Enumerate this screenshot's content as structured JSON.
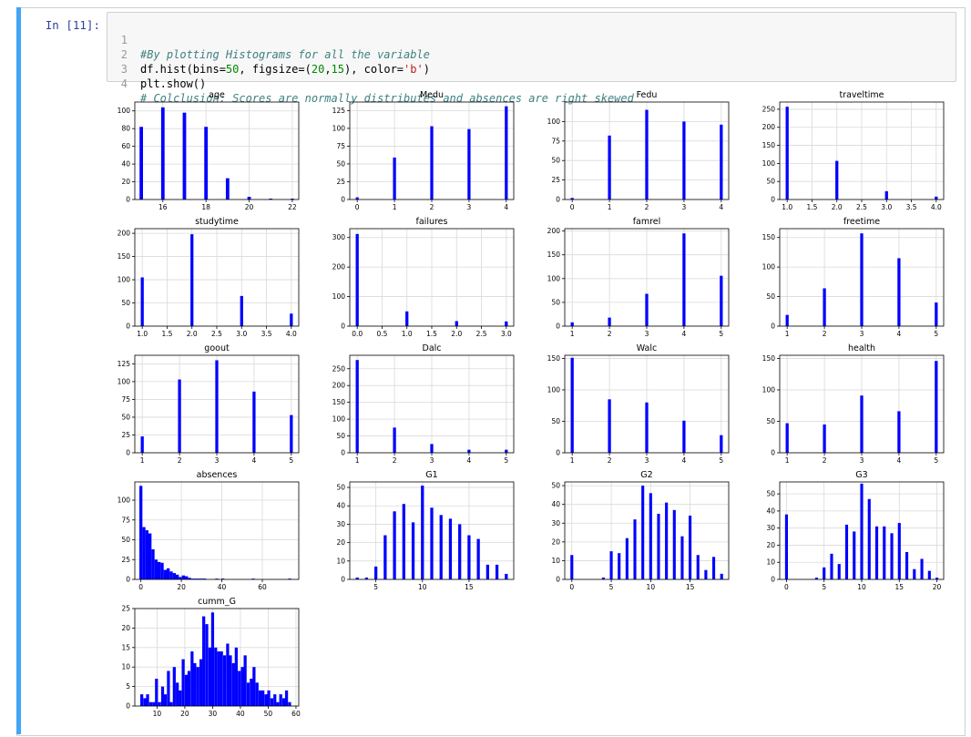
{
  "cell": {
    "prompt": "In [11]:",
    "lines": [
      {
        "no": "1",
        "tokens": [
          {
            "t": "#By plotting Histograms for all the variable",
            "c": "cm-comment"
          }
        ]
      },
      {
        "no": "2",
        "tokens": [
          {
            "t": "df.hist(bins=",
            "c": ""
          },
          {
            "t": "50",
            "c": "cm-number"
          },
          {
            "t": ", figsize=(",
            "c": ""
          },
          {
            "t": "20",
            "c": "cm-number"
          },
          {
            "t": ",",
            "c": ""
          },
          {
            "t": "15",
            "c": "cm-number"
          },
          {
            "t": "), color=",
            "c": ""
          },
          {
            "t": "'b'",
            "c": "cm-string"
          },
          {
            "t": ")",
            "c": ""
          }
        ]
      },
      {
        "no": "3",
        "tokens": [
          {
            "t": "plt.show()",
            "c": ""
          }
        ]
      },
      {
        "no": "4",
        "tokens": [
          {
            "t": "# Colclusion: Scores are normally distributes and absences are right skewed",
            "c": "cm-comment"
          }
        ]
      }
    ]
  },
  "colors": {
    "bar": "#0000ff",
    "grid": "#d9d9d9",
    "axis": "#000000",
    "prompt": "#303f9f",
    "cell_bar": "#42a5f5"
  },
  "chart_data": [
    {
      "type": "bar",
      "title": "age",
      "xlim": [
        14.7,
        22.3
      ],
      "ylim": [
        0,
        110
      ],
      "xticks": [
        16,
        18,
        20,
        22
      ],
      "xtick_labels": [
        "16",
        "18",
        "20",
        "22"
      ],
      "yticks": [
        0,
        20,
        40,
        60,
        80,
        100
      ],
      "bar_width": 0.16,
      "x": [
        15,
        16,
        17,
        18,
        19,
        20,
        21,
        22
      ],
      "values": [
        82,
        104,
        98,
        82,
        24,
        3,
        1,
        1
      ]
    },
    {
      "type": "bar",
      "title": "Medu",
      "xlim": [
        -0.2,
        4.2
      ],
      "ylim": [
        0,
        137
      ],
      "xticks": [
        0,
        1,
        2,
        3,
        4
      ],
      "xtick_labels": [
        "0",
        "1",
        "2",
        "3",
        "4"
      ],
      "yticks": [
        0,
        25,
        50,
        75,
        100,
        125
      ],
      "bar_width": 0.08,
      "x": [
        0,
        1,
        2,
        3,
        4
      ],
      "values": [
        3,
        59,
        103,
        99,
        131
      ]
    },
    {
      "type": "bar",
      "title": "Fedu",
      "xlim": [
        -0.2,
        4.2
      ],
      "ylim": [
        0,
        125
      ],
      "xticks": [
        0,
        1,
        2,
        3,
        4
      ],
      "xtick_labels": [
        "0",
        "1",
        "2",
        "3",
        "4"
      ],
      "yticks": [
        0,
        25,
        50,
        75,
        100
      ],
      "bar_width": 0.08,
      "x": [
        0,
        1,
        2,
        3,
        4
      ],
      "values": [
        2,
        82,
        115,
        100,
        96
      ]
    },
    {
      "type": "bar",
      "title": "traveltime",
      "xlim": [
        0.85,
        4.15
      ],
      "ylim": [
        0,
        270
      ],
      "xticks": [
        1,
        1.5,
        2,
        2.5,
        3,
        3.5,
        4
      ],
      "xtick_labels": [
        "1.0",
        "1.5",
        "2.0",
        "2.5",
        "3.0",
        "3.5",
        "4.0"
      ],
      "yticks": [
        0,
        50,
        100,
        150,
        200,
        250
      ],
      "bar_width": 0.06,
      "x": [
        1,
        2,
        3,
        4
      ],
      "values": [
        257,
        107,
        23,
        8
      ]
    },
    {
      "type": "bar",
      "title": "studytime",
      "xlim": [
        0.85,
        4.15
      ],
      "ylim": [
        0,
        210
      ],
      "xticks": [
        1,
        1.5,
        2,
        2.5,
        3,
        3.5,
        4
      ],
      "xtick_labels": [
        "1.0",
        "1.5",
        "2.0",
        "2.5",
        "3.0",
        "3.5",
        "4.0"
      ],
      "yticks": [
        0,
        50,
        100,
        150,
        200
      ],
      "bar_width": 0.06,
      "x": [
        1,
        2,
        3,
        4
      ],
      "values": [
        105,
        198,
        65,
        27
      ]
    },
    {
      "type": "bar",
      "title": "failures",
      "xlim": [
        -0.15,
        3.15
      ],
      "ylim": [
        0,
        330
      ],
      "xticks": [
        0,
        0.5,
        1,
        1.5,
        2,
        2.5,
        3
      ],
      "xtick_labels": [
        "0.0",
        "0.5",
        "1.0",
        "1.5",
        "2.0",
        "2.5",
        "3.0"
      ],
      "yticks": [
        0,
        100,
        200,
        300
      ],
      "bar_width": 0.06,
      "x": [
        0,
        1,
        2,
        3
      ],
      "values": [
        312,
        50,
        17,
        16
      ]
    },
    {
      "type": "bar",
      "title": "famrel",
      "xlim": [
        0.8,
        5.2
      ],
      "ylim": [
        0,
        205
      ],
      "xticks": [
        1,
        2,
        3,
        4,
        5
      ],
      "xtick_labels": [
        "1",
        "2",
        "3",
        "4",
        "5"
      ],
      "yticks": [
        0,
        50,
        100,
        150,
        200
      ],
      "bar_width": 0.08,
      "x": [
        1,
        2,
        3,
        4,
        5
      ],
      "values": [
        8,
        18,
        68,
        195,
        106
      ]
    },
    {
      "type": "bar",
      "title": "freetime",
      "xlim": [
        0.8,
        5.2
      ],
      "ylim": [
        0,
        165
      ],
      "xticks": [
        1,
        2,
        3,
        4,
        5
      ],
      "xtick_labels": [
        "1",
        "2",
        "3",
        "4",
        "5"
      ],
      "yticks": [
        0,
        50,
        100,
        150
      ],
      "bar_width": 0.08,
      "x": [
        1,
        2,
        3,
        4,
        5
      ],
      "values": [
        19,
        64,
        157,
        115,
        40
      ]
    },
    {
      "type": "bar",
      "title": "goout",
      "xlim": [
        0.8,
        5.2
      ],
      "ylim": [
        0,
        137
      ],
      "xticks": [
        1,
        2,
        3,
        4,
        5
      ],
      "xtick_labels": [
        "1",
        "2",
        "3",
        "4",
        "5"
      ],
      "yticks": [
        0,
        25,
        50,
        75,
        100,
        125
      ],
      "bar_width": 0.08,
      "x": [
        1,
        2,
        3,
        4,
        5
      ],
      "values": [
        23,
        103,
        130,
        86,
        53
      ]
    },
    {
      "type": "bar",
      "title": "Dalc",
      "xlim": [
        0.8,
        5.2
      ],
      "ylim": [
        0,
        290
      ],
      "xticks": [
        1,
        2,
        3,
        4,
        5
      ],
      "xtick_labels": [
        "1",
        "2",
        "3",
        "4",
        "5"
      ],
      "yticks": [
        0,
        50,
        100,
        150,
        200,
        250
      ],
      "bar_width": 0.08,
      "x": [
        1,
        2,
        3,
        4,
        5
      ],
      "values": [
        276,
        75,
        26,
        9,
        9
      ]
    },
    {
      "type": "bar",
      "title": "Walc",
      "xlim": [
        0.8,
        5.2
      ],
      "ylim": [
        0,
        155
      ],
      "xticks": [
        1,
        2,
        3,
        4,
        5
      ],
      "xtick_labels": [
        "1",
        "2",
        "3",
        "4",
        "5"
      ],
      "yticks": [
        0,
        50,
        100,
        150
      ],
      "bar_width": 0.08,
      "x": [
        1,
        2,
        3,
        4,
        5
      ],
      "values": [
        151,
        85,
        80,
        51,
        28
      ]
    },
    {
      "type": "bar",
      "title": "health",
      "xlim": [
        0.8,
        5.2
      ],
      "ylim": [
        0,
        155
      ],
      "xticks": [
        1,
        2,
        3,
        4,
        5
      ],
      "xtick_labels": [
        "1",
        "2",
        "3",
        "4",
        "5"
      ],
      "yticks": [
        0,
        50,
        100,
        150
      ],
      "bar_width": 0.08,
      "x": [
        1,
        2,
        3,
        4,
        5
      ],
      "values": [
        47,
        45,
        91,
        66,
        146
      ]
    },
    {
      "type": "bar",
      "title": "absences",
      "xlim": [
        -3,
        78
      ],
      "ylim": [
        0,
        123
      ],
      "xticks": [
        0,
        20,
        40,
        60
      ],
      "xtick_labels": [
        "0",
        "20",
        "40",
        "60"
      ],
      "yticks": [
        0,
        25,
        50,
        75,
        100
      ],
      "bar_width": 1.5,
      "x": [
        0,
        1.5,
        3,
        4.5,
        6,
        7.5,
        9,
        10.5,
        12,
        13.5,
        15,
        16.5,
        18,
        19.5,
        21,
        22.5,
        24,
        25.5,
        27,
        28.5,
        30,
        31.5,
        37.5,
        40.5,
        55.5,
        73.5
      ],
      "values": [
        118,
        66,
        62,
        58,
        38,
        25,
        22,
        21,
        12,
        14,
        10,
        8,
        6,
        3,
        5,
        4,
        2,
        1,
        1,
        1,
        1,
        1,
        1,
        1,
        1,
        1
      ]
    },
    {
      "type": "bar",
      "title": "G1",
      "xlim": [
        2.2,
        19.8
      ],
      "ylim": [
        0,
        53
      ],
      "xticks": [
        5,
        10,
        15
      ],
      "xtick_labels": [
        "5",
        "10",
        "15"
      ],
      "yticks": [
        0,
        10,
        20,
        30,
        40,
        50
      ],
      "bar_width": 0.32,
      "x": [
        3,
        4,
        5,
        6,
        7,
        8,
        9,
        10,
        11,
        12,
        13,
        14,
        15,
        16,
        17,
        18,
        19
      ],
      "values": [
        1,
        1,
        7,
        24,
        37,
        41,
        31,
        51,
        39,
        35,
        33,
        30,
        24,
        22,
        8,
        8,
        3
      ]
    },
    {
      "type": "bar",
      "title": "G2",
      "xlim": [
        -0.9,
        19.9
      ],
      "ylim": [
        0,
        52
      ],
      "xticks": [
        0,
        5,
        10,
        15
      ],
      "xtick_labels": [
        "0",
        "5",
        "10",
        "15"
      ],
      "yticks": [
        0,
        10,
        20,
        30,
        40,
        50
      ],
      "bar_width": 0.36,
      "x": [
        0,
        4,
        5,
        6,
        7,
        8,
        9,
        10,
        11,
        12,
        13,
        14,
        15,
        16,
        17,
        18,
        19
      ],
      "values": [
        13,
        1,
        15,
        14,
        22,
        32,
        50,
        46,
        35,
        41,
        37,
        23,
        34,
        13,
        5,
        12,
        3
      ]
    },
    {
      "type": "bar",
      "title": "G3",
      "xlim": [
        -0.9,
        20.9
      ],
      "ylim": [
        0,
        57
      ],
      "xticks": [
        0,
        5,
        10,
        15,
        20
      ],
      "xtick_labels": [
        "0",
        "5",
        "10",
        "15",
        "20"
      ],
      "yticks": [
        0,
        10,
        20,
        30,
        40,
        50
      ],
      "bar_width": 0.38,
      "x": [
        0,
        4,
        5,
        6,
        7,
        8,
        9,
        10,
        11,
        12,
        13,
        14,
        15,
        16,
        17,
        18,
        19,
        20
      ],
      "values": [
        38,
        1,
        7,
        15,
        9,
        32,
        28,
        56,
        47,
        31,
        31,
        27,
        33,
        16,
        6,
        12,
        5,
        1
      ]
    },
    {
      "type": "bar",
      "title": "cumm_G",
      "xlim": [
        2,
        61
      ],
      "ylim": [
        0,
        25
      ],
      "xticks": [
        10,
        20,
        30,
        40,
        50,
        60
      ],
      "xtick_labels": [
        "10",
        "20",
        "30",
        "40",
        "50",
        "60"
      ],
      "yticks": [
        0,
        5,
        10,
        15,
        20,
        25
      ],
      "bar_width": 1.06,
      "x": [
        4.5,
        5.6,
        6.6,
        7.7,
        8.8,
        9.8,
        10.9,
        12,
        13,
        14.1,
        15.1,
        16.2,
        17.3,
        18.3,
        19.4,
        20.5,
        21.5,
        22.6,
        23.6,
        24.7,
        25.8,
        26.8,
        27.9,
        29,
        30,
        31.1,
        32.2,
        33.2,
        34.3,
        35.4,
        36.4,
        37.5,
        38.5,
        39.6,
        40.7,
        41.7,
        42.8,
        43.9,
        44.9,
        46,
        47.1,
        48.1,
        49.2,
        50.2,
        51.3,
        52.4,
        53.4,
        54.5,
        55.6,
        56.6,
        57.7
      ],
      "values": [
        3,
        2,
        3,
        1,
        1,
        7,
        1,
        5,
        3,
        9,
        1,
        10,
        6,
        4,
        12,
        8,
        9,
        14,
        11,
        10,
        12,
        23,
        21,
        15,
        24,
        15,
        14,
        14,
        13,
        16,
        13,
        11,
        15,
        9,
        10,
        13,
        6,
        7,
        10,
        6,
        4,
        4,
        3,
        4,
        2,
        3,
        1,
        3,
        2,
        4,
        1
      ]
    }
  ]
}
